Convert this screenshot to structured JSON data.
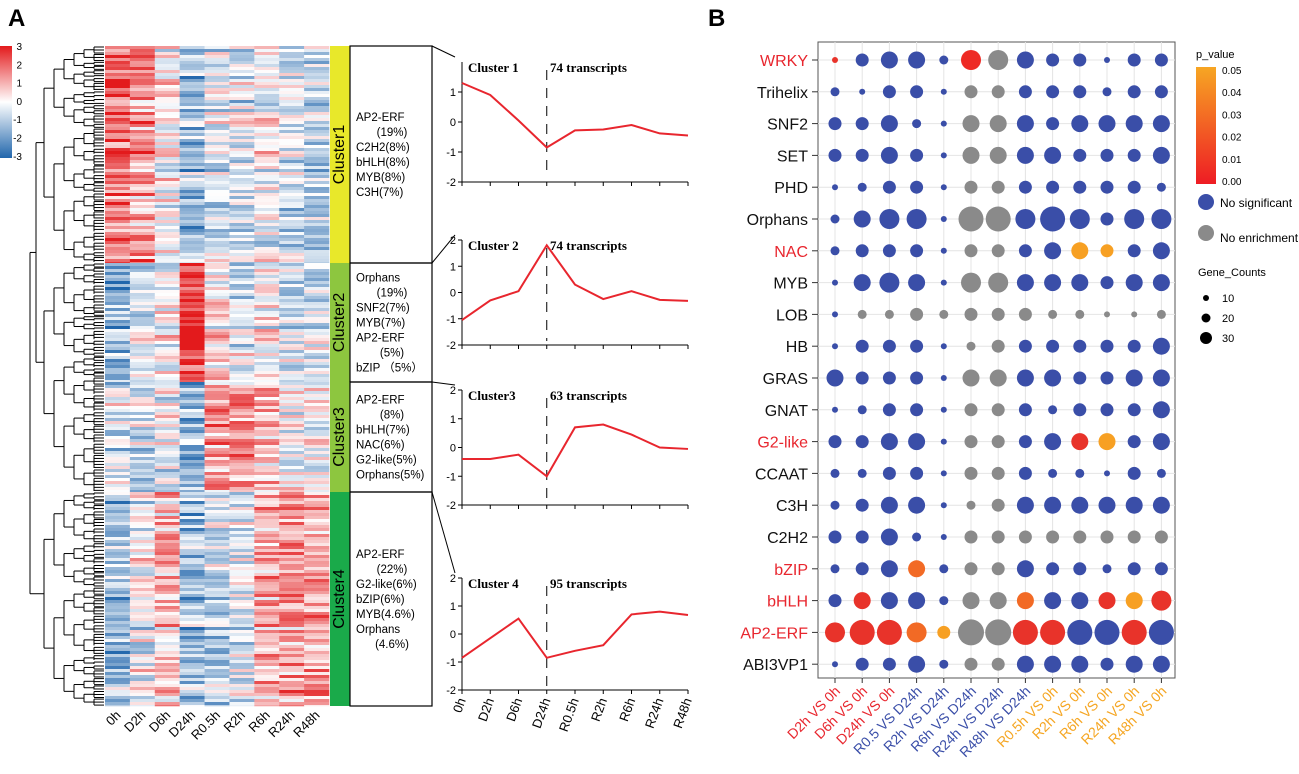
{
  "chart_data": [
    {
      "type": "heatmap",
      "panel_label": "A",
      "columns": [
        "0h",
        "D2h",
        "D6h",
        "D24h",
        "R0.5h",
        "R2h",
        "R6h",
        "R24h",
        "R48h"
      ],
      "colorbar": {
        "min": -3,
        "max": 3,
        "ticks": [
          "3",
          "2",
          "1",
          "0",
          "-1",
          "-2",
          "-3"
        ],
        "low_color": "#2166ac",
        "mid_color": "#ffffff",
        "high_color": "#e31a1c"
      },
      "clusters": [
        {
          "name": "Cluster1",
          "color": "#e8e82a",
          "families": [
            "AP2-ERF",
            "(19%)",
            "C2H2(8%)",
            "bHLH(8%)",
            "MYB(8%)",
            "C3H(7%)"
          ]
        },
        {
          "name": "Cluster2",
          "color": "#8dc63f",
          "families": [
            "Orphans",
            "(19%)",
            "SNF2(7%)",
            "MYB(7%)",
            "AP2-ERF",
            "(5%)",
            "bZIP （5%）"
          ]
        },
        {
          "name": "Cluster3",
          "color": "#8dc63f",
          "families": [
            "AP2-ERF",
            "(8%)",
            "bHLH(7%)",
            "NAC(6%)",
            "G2-like(5%)",
            "Orphans(5%)"
          ]
        },
        {
          "name": "Cluster4",
          "color": "#1aaa4a",
          "families": [
            "AP2-ERF",
            "(22%)",
            "G2-like(6%)",
            "bZIP(6%)",
            "MYB(4.6%)",
            "Orphans",
            "(4.6%)"
          ]
        }
      ]
    },
    {
      "type": "line",
      "x": [
        "0h",
        "D2h",
        "D6h",
        "D24h",
        "R0.5h",
        "R2h",
        "R6h",
        "R24h",
        "R48h"
      ],
      "series": [
        {
          "title": "Cluster 1",
          "subtitle": "74 transcripts",
          "ylim": [
            -2,
            2
          ],
          "yticks": [
            "1",
            "0",
            "-1",
            "-2"
          ],
          "values": [
            1.3,
            0.9,
            0.05,
            -0.85,
            -0.28,
            -0.25,
            -0.1,
            -0.38,
            -0.45
          ]
        },
        {
          "title": "Cluster 2",
          "subtitle": "74 transcripts",
          "ylim": [
            -2,
            2
          ],
          "yticks": [
            "2",
            "1",
            "0",
            "-1",
            "-2"
          ],
          "values": [
            -1.05,
            -0.3,
            0.05,
            1.8,
            0.3,
            -0.25,
            0.05,
            -0.28,
            -0.32
          ]
        },
        {
          "title": "Cluster3",
          "subtitle": "63 transcripts",
          "ylim": [
            -2,
            2
          ],
          "yticks": [
            "2",
            "1",
            "0",
            "-1",
            "-2"
          ],
          "values": [
            -0.4,
            -0.4,
            -0.25,
            -1.0,
            0.7,
            0.8,
            0.45,
            0.0,
            -0.05
          ]
        },
        {
          "title": "Cluster 4",
          "subtitle": "95 transcripts",
          "ylim": [
            -2,
            2
          ],
          "yticks": [
            "2",
            "1",
            "0",
            "-1",
            "-2"
          ],
          "values": [
            -0.85,
            -0.15,
            0.55,
            -0.85,
            -0.6,
            -0.4,
            0.7,
            0.8,
            0.68
          ]
        }
      ]
    },
    {
      "type": "scatter",
      "panel_label": "B",
      "rows": [
        "WRKY",
        "Trihelix",
        "SNF2",
        "SET",
        "PHD",
        "Orphans",
        "NAC",
        "MYB",
        "LOB",
        "HB",
        "GRAS",
        "GNAT",
        "G2-like",
        "CCAAT",
        "C3H",
        "C2H2",
        "bZIP",
        "bHLH",
        "AP2-ERF",
        "ABI3VP1"
      ],
      "red_rows": [
        "WRKY",
        "NAC",
        "G2-like",
        "bZIP",
        "bHLH",
        "AP2-ERF"
      ],
      "columns": [
        "D2h VS 0h",
        "D6h VS 0h",
        "D24h VS 0h",
        "R0.5 VS D24h",
        "R2h VS D24h",
        "R6h VS D24h",
        "R24h VS D24h",
        "R48h VS D24h",
        "R0.5h VS 0h",
        "R2h VS 0h",
        "R6h VS 0h",
        "R24h VS 0h",
        "R48h VS 0h"
      ],
      "column_colors": [
        "#e8262e",
        "#e8262e",
        "#e8262e",
        "#3a4ea8",
        "#3a4ea8",
        "#3a4ea8",
        "#3a4ea8",
        "#3a4ea8",
        "#f5a623",
        "#f5a623",
        "#f5a623",
        "#f5a623",
        "#f5a623"
      ],
      "sizes": [
        [
          0,
          2,
          3,
          3,
          1,
          4,
          4,
          3,
          2,
          2,
          0,
          2,
          2
        ],
        [
          1,
          0,
          2,
          2,
          0,
          2,
          2,
          2,
          2,
          2,
          1,
          2,
          2
        ],
        [
          2,
          2,
          3,
          1,
          0,
          3,
          3,
          3,
          2,
          3,
          3,
          3,
          3
        ],
        [
          2,
          2,
          3,
          2,
          0,
          3,
          3,
          3,
          3,
          2,
          2,
          2,
          3
        ],
        [
          0,
          1,
          2,
          2,
          0,
          2,
          2,
          2,
          2,
          2,
          2,
          2,
          1
        ],
        [
          1,
          3,
          4,
          4,
          0,
          5,
          5,
          4,
          5,
          4,
          2,
          4,
          4
        ],
        [
          1,
          2,
          2,
          2,
          0,
          2,
          2,
          2,
          3,
          3,
          2,
          2,
          3
        ],
        [
          0,
          3,
          4,
          3,
          0,
          4,
          4,
          3,
          3,
          3,
          2,
          3,
          3
        ],
        [
          0,
          1,
          1,
          2,
          1,
          2,
          2,
          2,
          1,
          1,
          0,
          0,
          1
        ],
        [
          0,
          2,
          2,
          2,
          0,
          1,
          2,
          2,
          2,
          2,
          2,
          2,
          3
        ],
        [
          3,
          2,
          2,
          2,
          0,
          3,
          3,
          3,
          3,
          2,
          2,
          3,
          3
        ],
        [
          0,
          1,
          2,
          2,
          0,
          2,
          2,
          2,
          1,
          2,
          2,
          2,
          3
        ],
        [
          2,
          2,
          3,
          3,
          0,
          2,
          2,
          2,
          3,
          3,
          3,
          2,
          3
        ],
        [
          1,
          1,
          2,
          2,
          0,
          2,
          2,
          2,
          1,
          1,
          0,
          2,
          1
        ],
        [
          1,
          2,
          3,
          3,
          0,
          1,
          2,
          3,
          3,
          3,
          3,
          3,
          3
        ],
        [
          2,
          2,
          3,
          1,
          0,
          2,
          2,
          2,
          2,
          2,
          2,
          2,
          2
        ],
        [
          1,
          2,
          3,
          3,
          1,
          2,
          2,
          3,
          2,
          2,
          1,
          2,
          2
        ],
        [
          2,
          3,
          3,
          3,
          1,
          3,
          3,
          3,
          3,
          3,
          3,
          3,
          4
        ],
        [
          4,
          5,
          5,
          4,
          2,
          6,
          6,
          5,
          5,
          5,
          5,
          5,
          5
        ],
        [
          0,
          2,
          2,
          3,
          1,
          2,
          2,
          3,
          3,
          3,
          2,
          3,
          3
        ]
      ],
      "categories": [
        [
          3,
          0,
          0,
          0,
          0,
          1,
          2,
          0,
          0,
          0,
          0,
          0,
          0
        ],
        [
          0,
          0,
          0,
          0,
          0,
          2,
          2,
          0,
          0,
          0,
          0,
          0,
          0
        ],
        [
          0,
          0,
          0,
          0,
          0,
          2,
          2,
          0,
          0,
          0,
          0,
          0,
          0
        ],
        [
          0,
          0,
          0,
          0,
          0,
          2,
          2,
          0,
          0,
          0,
          0,
          0,
          0
        ],
        [
          0,
          0,
          0,
          0,
          0,
          2,
          2,
          0,
          0,
          0,
          0,
          0,
          0
        ],
        [
          0,
          0,
          0,
          0,
          0,
          2,
          2,
          0,
          0,
          0,
          0,
          0,
          0
        ],
        [
          0,
          0,
          0,
          0,
          0,
          2,
          2,
          0,
          0,
          5,
          5,
          0,
          0
        ],
        [
          0,
          0,
          0,
          0,
          0,
          2,
          2,
          0,
          0,
          0,
          0,
          0,
          0
        ],
        [
          0,
          2,
          2,
          2,
          2,
          2,
          2,
          2,
          2,
          2,
          2,
          2,
          2
        ],
        [
          0,
          0,
          0,
          0,
          0,
          2,
          2,
          0,
          0,
          0,
          0,
          0,
          0
        ],
        [
          0,
          0,
          0,
          0,
          0,
          2,
          2,
          0,
          0,
          0,
          0,
          0,
          0
        ],
        [
          0,
          0,
          0,
          0,
          0,
          2,
          2,
          0,
          0,
          0,
          0,
          0,
          0
        ],
        [
          0,
          0,
          0,
          0,
          0,
          2,
          2,
          0,
          0,
          3,
          5,
          0,
          0
        ],
        [
          0,
          0,
          0,
          0,
          0,
          2,
          2,
          0,
          0,
          0,
          0,
          0,
          0
        ],
        [
          0,
          0,
          0,
          0,
          0,
          2,
          2,
          0,
          0,
          0,
          0,
          0,
          0
        ],
        [
          0,
          0,
          0,
          0,
          0,
          2,
          2,
          2,
          2,
          2,
          2,
          2,
          2
        ],
        [
          0,
          0,
          0,
          4,
          0,
          2,
          2,
          0,
          0,
          0,
          0,
          0,
          0
        ],
        [
          0,
          3,
          0,
          0,
          0,
          2,
          2,
          4,
          0,
          0,
          3,
          5,
          3
        ],
        [
          3,
          3,
          3,
          4,
          5,
          2,
          2,
          3,
          3,
          0,
          0,
          3,
          0
        ],
        [
          0,
          0,
          0,
          0,
          0,
          2,
          2,
          0,
          0,
          0,
          0,
          0,
          0
        ]
      ],
      "category_colors": [
        "#3a4ea8",
        "#ee2a24",
        "#8a8a8a",
        "#e8332a",
        "#f26a25",
        "#f7a023"
      ],
      "legend": {
        "p_title": "p_value",
        "p_ticks": [
          "0.05",
          "0.04",
          "0.03",
          "0.02",
          "0.01",
          "0.00"
        ],
        "no_significant": "No significant",
        "no_enrichment": "No enrichment",
        "gene_counts_title": "Gene_Counts",
        "gene_counts": [
          "10",
          "20",
          "30"
        ]
      }
    }
  ]
}
